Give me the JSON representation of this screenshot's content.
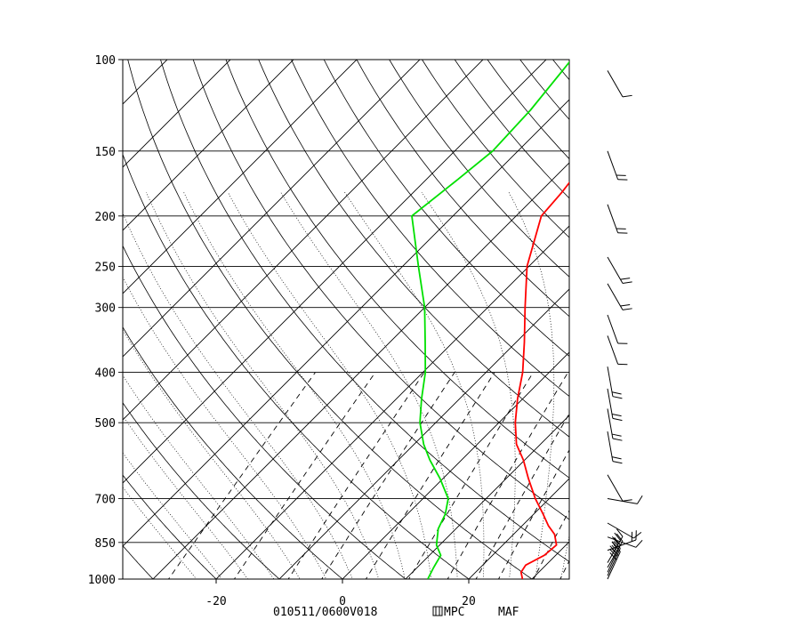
{
  "chart_data": {
    "type": "line",
    "title": "",
    "xlabel": "",
    "ylabel": "",
    "pressure_levels": [
      100,
      150,
      200,
      250,
      300,
      400,
      500,
      700,
      850,
      1000
    ],
    "pressure_tick_labels": [
      "100",
      "150",
      "200",
      "250",
      "300",
      "400",
      "500",
      "700",
      "850",
      "1000"
    ],
    "temperature_ticks": [
      -20,
      0,
      20
    ],
    "temperature_tick_labels": [
      "-20",
      "0",
      "20"
    ],
    "xlim": [
      -34,
      35
    ],
    "ylim": [
      1000,
      100
    ],
    "y_scale": "log",
    "footer": {
      "run": "010511/0600V018",
      "source": "MPC",
      "station": "MAF"
    },
    "series": [
      {
        "color": "#ff0000",
        "points": [
          {
            "p": 1000,
            "t": 28.5
          },
          {
            "p": 970,
            "t": 27.2
          },
          {
            "p": 940,
            "t": 26.8
          },
          {
            "p": 900,
            "t": 28.2
          },
          {
            "p": 860,
            "t": 28.5
          },
          {
            "p": 820,
            "t": 26.5
          },
          {
            "p": 790,
            "t": 24.2
          },
          {
            "p": 750,
            "t": 21.5
          },
          {
            "p": 700,
            "t": 17.8
          },
          {
            "p": 640,
            "t": 13.5
          },
          {
            "p": 590,
            "t": 9.8
          },
          {
            "p": 550,
            "t": 6.2
          },
          {
            "p": 500,
            "t": 2.6
          },
          {
            "p": 450,
            "t": -0.8
          },
          {
            "p": 400,
            "t": -4.2
          },
          {
            "p": 350,
            "t": -8.7
          },
          {
            "p": 300,
            "t": -14.1
          },
          {
            "p": 250,
            "t": -20.3
          },
          {
            "p": 200,
            "t": -26.0
          },
          {
            "p": 180,
            "t": -26.5
          },
          {
            "p": 150,
            "t": -28.0
          },
          {
            "p": 125,
            "t": -30.5
          },
          {
            "p": 100,
            "t": -32.0
          }
        ]
      },
      {
        "color": "#00e000",
        "points": [
          {
            "p": 1000,
            "t": 13.5
          },
          {
            "p": 950,
            "t": 12.6
          },
          {
            "p": 900,
            "t": 11.8
          },
          {
            "p": 860,
            "t": 9.5
          },
          {
            "p": 800,
            "t": 7.2
          },
          {
            "p": 750,
            "t": 6.0
          },
          {
            "p": 700,
            "t": 4.0
          },
          {
            "p": 640,
            "t": -0.5
          },
          {
            "p": 590,
            "t": -5.0
          },
          {
            "p": 550,
            "t": -8.5
          },
          {
            "p": 500,
            "t": -12.5
          },
          {
            "p": 450,
            "t": -16.0
          },
          {
            "p": 400,
            "t": -19.6
          },
          {
            "p": 350,
            "t": -24.4
          },
          {
            "p": 300,
            "t": -30.0
          },
          {
            "p": 250,
            "t": -37.5
          },
          {
            "p": 200,
            "t": -46.5
          },
          {
            "p": 170,
            "t": -45.0
          },
          {
            "p": 150,
            "t": -44.0
          },
          {
            "p": 125,
            "t": -44.5
          },
          {
            "p": 100,
            "t": -46.0
          }
        ]
      }
    ],
    "wind_barbs": [
      {
        "p": 1000,
        "barbs": 3,
        "dir": 205
      },
      {
        "p": 985,
        "barbs": 3,
        "dir": 205
      },
      {
        "p": 970,
        "barbs": 3,
        "dir": 205
      },
      {
        "p": 950,
        "barbs": 3,
        "dir": 210
      },
      {
        "p": 930,
        "barbs": 3,
        "dir": 210
      },
      {
        "p": 880,
        "barbs": 2,
        "dir": 250
      },
      {
        "p": 830,
        "barbs": 1,
        "dir": 290
      },
      {
        "p": 780,
        "barbs": 1,
        "dir": 300
      },
      {
        "p": 700,
        "barbs": 1,
        "dir": 280
      },
      {
        "p": 630,
        "barbs": 1,
        "dir": 330
      },
      {
        "p": 520,
        "barbs": 2,
        "dir": 350
      },
      {
        "p": 470,
        "barbs": 2,
        "dir": 350
      },
      {
        "p": 430,
        "barbs": 2,
        "dir": 350
      },
      {
        "p": 390,
        "barbs": 2,
        "dir": 350
      },
      {
        "p": 340,
        "barbs": 1,
        "dir": 340
      },
      {
        "p": 310,
        "barbs": 1,
        "dir": 340
      },
      {
        "p": 270,
        "barbs": 2,
        "dir": 330
      },
      {
        "p": 240,
        "barbs": 2,
        "dir": 330
      },
      {
        "p": 190,
        "barbs": 2,
        "dir": 340
      },
      {
        "p": 150,
        "barbs": 2,
        "dir": 340
      },
      {
        "p": 105,
        "barbs": 1,
        "dir": 330
      }
    ]
  }
}
